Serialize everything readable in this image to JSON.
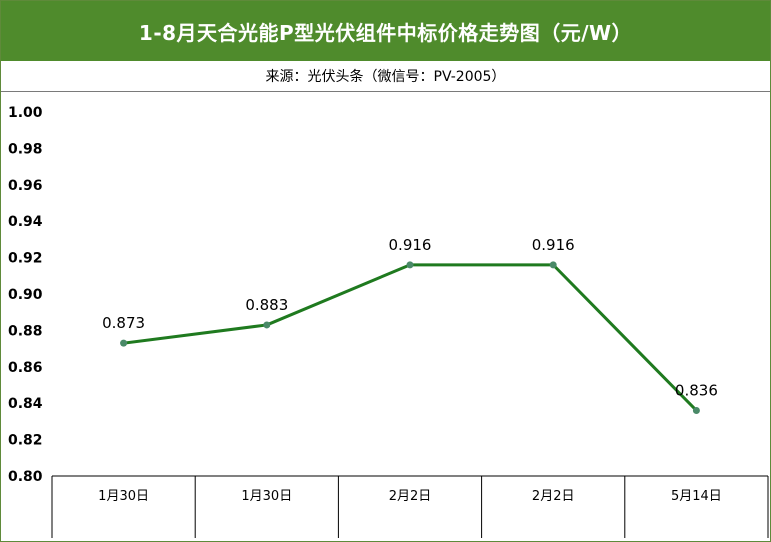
{
  "header": {
    "title": "1-8月天合光能P型光伏组件中标价格走势图（元/W）",
    "source": "来源：光伏头条（微信号：PV-2005）"
  },
  "colors": {
    "title_bg": "#4f8b2c",
    "line": "#1f7a1f",
    "marker": "#4a8a68"
  },
  "chart_data": {
    "type": "line",
    "categories": [
      "1月30日",
      "1月30日",
      "2月2日",
      "2月2日",
      "5月14日"
    ],
    "values": [
      0.873,
      0.883,
      0.916,
      0.916,
      0.836
    ],
    "value_labels": [
      "0.873",
      "0.883",
      "0.916",
      "0.916",
      "0.836"
    ],
    "yticks": [
      "1.00",
      "0.98",
      "0.96",
      "0.94",
      "0.92",
      "0.90",
      "0.88",
      "0.86",
      "0.84",
      "0.82",
      "0.80"
    ],
    "ylim": [
      0.8,
      1.0
    ],
    "grid": false,
    "legend": "none"
  }
}
